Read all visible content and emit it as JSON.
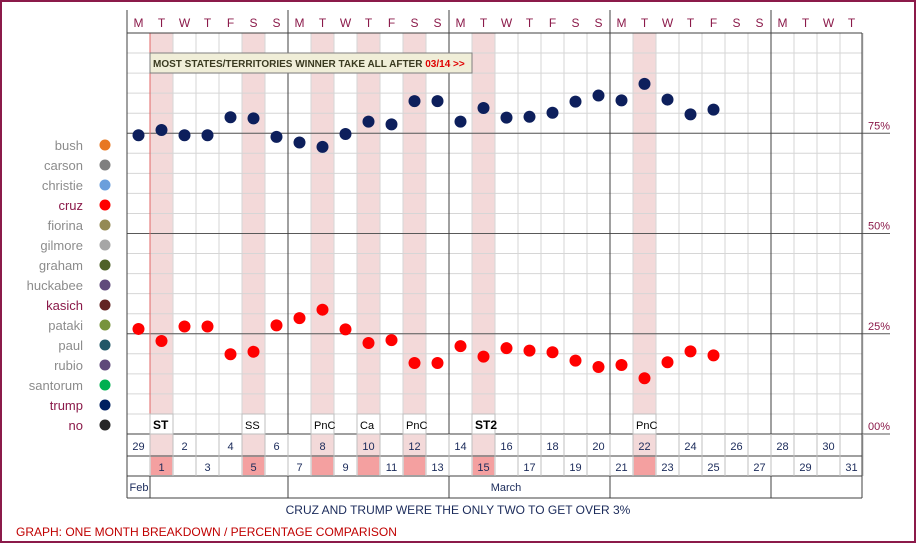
{
  "chart_data": {
    "type": "scatter",
    "title": "",
    "yticks": [
      "75%",
      "50%",
      "25%",
      "00%"
    ],
    "ytick_values": [
      75,
      50,
      25,
      0
    ],
    "ylim": [
      0,
      100
    ],
    "weekday_header": [
      "M",
      "T",
      "W",
      "T",
      "F",
      "S",
      "S",
      "M",
      "T",
      "W",
      "T",
      "F",
      "S",
      "S",
      "M",
      "T",
      "W",
      "T",
      "F",
      "S",
      "S",
      "M",
      "T",
      "W",
      "T",
      "F",
      "S",
      "S",
      "M",
      "T",
      "W",
      "T"
    ],
    "dates_top": [
      "29",
      "",
      "2",
      "",
      "4",
      "",
      "6",
      "",
      "8",
      "",
      "10",
      "",
      "12",
      "",
      "14",
      "",
      "16",
      "",
      "18",
      "",
      "20",
      "",
      "22",
      "",
      "24",
      "",
      "26",
      "",
      "28",
      "",
      "30",
      ""
    ],
    "dates_bottom": [
      "",
      "1",
      "",
      "3",
      "",
      "5",
      "",
      "7",
      "",
      "9",
      "",
      "11",
      "",
      "13",
      "",
      "15",
      "",
      "17",
      "",
      "19",
      "",
      "21",
      "",
      "23",
      "",
      "25",
      "",
      "27",
      "",
      "29",
      "",
      "31"
    ],
    "highlight_date_cols": [
      1,
      5,
      8,
      10,
      12,
      15,
      22
    ],
    "shaded_cols": [
      1,
      5,
      8,
      10,
      12,
      15,
      22
    ],
    "event_labels": [
      {
        "col": 1,
        "text": "ST",
        "bold": true
      },
      {
        "col": 5,
        "text": "SS",
        "bold": false
      },
      {
        "col": 8,
        "text": "PnC",
        "bold": false
      },
      {
        "col": 10,
        "text": "Ca",
        "bold": false
      },
      {
        "col": 12,
        "text": "PnC",
        "bold": false
      },
      {
        "col": 15,
        "text": "ST2",
        "bold": true
      },
      {
        "col": 22,
        "text": "PnC",
        "bold": false
      }
    ],
    "annotation": {
      "text": "MOST STATES/TERRITORIES WINNER TAKE ALL AFTER ",
      "highlight": "03/14 >>"
    },
    "month_labels": {
      "feb": "Feb",
      "march": "March"
    },
    "legend": [
      {
        "name": "bush",
        "color": "#e87722",
        "active": false
      },
      {
        "name": "carson",
        "color": "#7f7f7f",
        "active": false
      },
      {
        "name": "christie",
        "color": "#6a9fdc",
        "active": false
      },
      {
        "name": "cruz",
        "color": "#ff0000",
        "active": true
      },
      {
        "name": "fiorina",
        "color": "#948a54",
        "active": false
      },
      {
        "name": "gilmore",
        "color": "#a6a6a6",
        "active": false
      },
      {
        "name": "graham",
        "color": "#4f6228",
        "active": false
      },
      {
        "name": "huckabee",
        "color": "#604a7b",
        "active": false
      },
      {
        "name": "kasich",
        "color": "#632523",
        "active": true
      },
      {
        "name": "pataki",
        "color": "#77933c",
        "active": false
      },
      {
        "name": "paul",
        "color": "#215867",
        "active": false
      },
      {
        "name": "rubio",
        "color": "#5f497a",
        "active": false
      },
      {
        "name": "santorum",
        "color": "#00b050",
        "active": false
      },
      {
        "name": "trump",
        "color": "#002060",
        "active": true
      },
      {
        "name": "no",
        "color": "#262626",
        "active": true
      }
    ],
    "series": [
      {
        "key": "trump",
        "color": "#0d1f5c",
        "values": [
          74.5,
          75.8,
          74.5,
          74.5,
          79,
          78.7,
          74.1,
          72.7,
          71.6,
          74.8,
          77.9,
          77.2,
          83,
          83,
          77.9,
          81.3,
          78.9,
          79.1,
          80.1,
          82.9,
          84.4,
          83.2,
          87.3,
          83.4,
          79.7,
          80.9
        ]
      },
      {
        "key": "cruz",
        "color": "#ff0000",
        "values": [
          26.2,
          23.2,
          26.8,
          26.8,
          19.9,
          20.5,
          27.1,
          28.9,
          31,
          26.1,
          22.7,
          23.4,
          17.7,
          17.7,
          21.9,
          19.3,
          21.4,
          20.8,
          20.4,
          18.3,
          16.7,
          17.2,
          13.9,
          17.9,
          20.6,
          19.6
        ]
      }
    ]
  },
  "caption": "CRUZ AND TRUMP WERE THE ONLY TWO TO GET OVER 3%",
  "footer": "GRAPH: ONE MONTH BREAKDOWN / PERCENTAGE COMPARISON"
}
